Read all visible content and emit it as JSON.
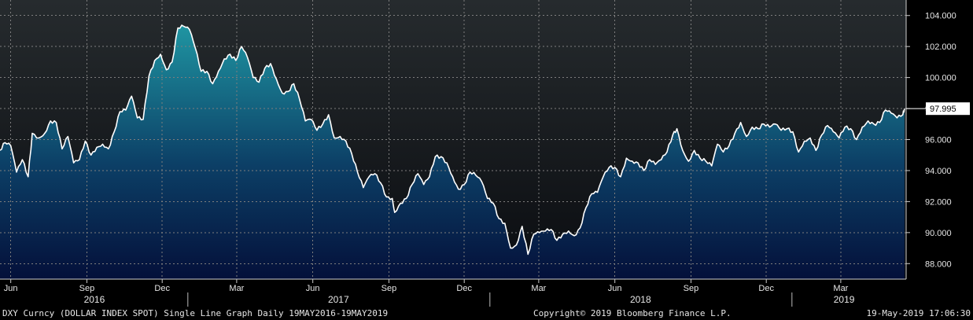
{
  "chart_data": {
    "type": "area",
    "series_name": "DXY Curncy",
    "ylim": [
      87.0,
      105.0
    ],
    "yticks": [
      "104.000",
      "102.000",
      "100.000",
      "98.000",
      "96.000",
      "94.000",
      "92.000",
      "90.000",
      "88.000"
    ],
    "last_value": "97.995",
    "x_month_labels": [
      "Jun",
      "Sep",
      "Dec",
      "Mar",
      "Jun",
      "Sep",
      "Dec",
      "Mar",
      "Jun",
      "Sep",
      "Dec",
      "Mar"
    ],
    "x_year_labels": [
      "2016",
      "2017",
      "2018",
      "2019"
    ],
    "points": [
      [
        "2016-05-19",
        95.3
      ],
      [
        "2016-05-25",
        95.8
      ],
      [
        "2016-06-01",
        95.6
      ],
      [
        "2016-06-08",
        93.9
      ],
      [
        "2016-06-15",
        94.7
      ],
      [
        "2016-06-22",
        93.6
      ],
      [
        "2016-06-27",
        96.4
      ],
      [
        "2016-07-05",
        96.1
      ],
      [
        "2016-07-12",
        96.4
      ],
      [
        "2016-07-19",
        97.2
      ],
      [
        "2016-07-26",
        97.1
      ],
      [
        "2016-08-02",
        95.4
      ],
      [
        "2016-08-09",
        96.2
      ],
      [
        "2016-08-16",
        94.5
      ],
      [
        "2016-08-23",
        94.7
      ],
      [
        "2016-08-30",
        95.9
      ],
      [
        "2016-09-06",
        95.0
      ],
      [
        "2016-09-13",
        95.5
      ],
      [
        "2016-09-20",
        95.7
      ],
      [
        "2016-09-27",
        95.4
      ],
      [
        "2016-10-04",
        96.5
      ],
      [
        "2016-10-11",
        97.8
      ],
      [
        "2016-10-18",
        97.9
      ],
      [
        "2016-10-25",
        98.8
      ],
      [
        "2016-11-01",
        97.4
      ],
      [
        "2016-11-08",
        97.3
      ],
      [
        "2016-11-15",
        100.1
      ],
      [
        "2016-11-22",
        101.1
      ],
      [
        "2016-11-29",
        101.5
      ],
      [
        "2016-12-06",
        100.5
      ],
      [
        "2016-12-13",
        101.0
      ],
      [
        "2016-12-20",
        103.2
      ],
      [
        "2016-12-27",
        103.3
      ],
      [
        "2017-01-03",
        103.1
      ],
      [
        "2017-01-10",
        101.9
      ],
      [
        "2017-01-17",
        100.4
      ],
      [
        "2017-01-24",
        100.4
      ],
      [
        "2017-01-31",
        99.6
      ],
      [
        "2017-02-07",
        100.4
      ],
      [
        "2017-02-14",
        101.2
      ],
      [
        "2017-02-21",
        101.5
      ],
      [
        "2017-02-28",
        101.1
      ],
      [
        "2017-03-07",
        102.0
      ],
      [
        "2017-03-14",
        101.3
      ],
      [
        "2017-03-21",
        100.0
      ],
      [
        "2017-03-28",
        99.7
      ],
      [
        "2017-04-04",
        100.6
      ],
      [
        "2017-04-11",
        100.9
      ],
      [
        "2017-04-18",
        99.9
      ],
      [
        "2017-04-25",
        99.0
      ],
      [
        "2017-05-02",
        99.1
      ],
      [
        "2017-05-09",
        99.6
      ],
      [
        "2017-05-16",
        98.6
      ],
      [
        "2017-05-23",
        97.2
      ],
      [
        "2017-05-30",
        97.3
      ],
      [
        "2017-06-06",
        96.6
      ],
      [
        "2017-06-13",
        97.0
      ],
      [
        "2017-06-20",
        97.6
      ],
      [
        "2017-06-27",
        96.1
      ],
      [
        "2017-07-04",
        96.2
      ],
      [
        "2017-07-11",
        95.9
      ],
      [
        "2017-07-18",
        95.1
      ],
      [
        "2017-07-25",
        93.9
      ],
      [
        "2017-08-01",
        92.9
      ],
      [
        "2017-08-08",
        93.6
      ],
      [
        "2017-08-15",
        93.8
      ],
      [
        "2017-08-22",
        93.2
      ],
      [
        "2017-08-29",
        92.3
      ],
      [
        "2017-09-05",
        92.2
      ],
      [
        "2017-09-08",
        91.3
      ],
      [
        "2017-09-15",
        91.9
      ],
      [
        "2017-09-22",
        92.2
      ],
      [
        "2017-09-29",
        93.1
      ],
      [
        "2017-10-06",
        93.8
      ],
      [
        "2017-10-13",
        93.1
      ],
      [
        "2017-10-20",
        93.6
      ],
      [
        "2017-10-27",
        94.9
      ],
      [
        "2017-11-03",
        94.9
      ],
      [
        "2017-11-10",
        94.5
      ],
      [
        "2017-11-17",
        93.6
      ],
      [
        "2017-11-24",
        92.8
      ],
      [
        "2017-12-01",
        93.1
      ],
      [
        "2017-12-08",
        93.9
      ],
      [
        "2017-12-15",
        93.7
      ],
      [
        "2017-12-22",
        93.3
      ],
      [
        "2017-12-29",
        92.2
      ],
      [
        "2018-01-05",
        91.9
      ],
      [
        "2018-01-12",
        90.9
      ],
      [
        "2018-01-19",
        90.6
      ],
      [
        "2018-01-26",
        89.0
      ],
      [
        "2018-02-02",
        89.2
      ],
      [
        "2018-02-09",
        90.4
      ],
      [
        "2018-02-16",
        88.6
      ],
      [
        "2018-02-23",
        89.9
      ],
      [
        "2018-03-02",
        90.0
      ],
      [
        "2018-03-09",
        90.1
      ],
      [
        "2018-03-16",
        90.2
      ],
      [
        "2018-03-23",
        89.5
      ],
      [
        "2018-03-30",
        89.9
      ],
      [
        "2018-04-06",
        90.1
      ],
      [
        "2018-04-13",
        89.8
      ],
      [
        "2018-04-20",
        90.3
      ],
      [
        "2018-04-27",
        91.6
      ],
      [
        "2018-05-04",
        92.5
      ],
      [
        "2018-05-11",
        92.6
      ],
      [
        "2018-05-18",
        93.6
      ],
      [
        "2018-05-25",
        94.2
      ],
      [
        "2018-06-01",
        94.2
      ],
      [
        "2018-06-08",
        93.6
      ],
      [
        "2018-06-15",
        94.8
      ],
      [
        "2018-06-22",
        94.6
      ],
      [
        "2018-06-29",
        94.5
      ],
      [
        "2018-07-06",
        94.0
      ],
      [
        "2018-07-13",
        94.7
      ],
      [
        "2018-07-20",
        94.4
      ],
      [
        "2018-07-27",
        94.7
      ],
      [
        "2018-08-03",
        95.2
      ],
      [
        "2018-08-10",
        96.3
      ],
      [
        "2018-08-15",
        96.7
      ],
      [
        "2018-08-22",
        95.3
      ],
      [
        "2018-08-29",
        94.6
      ],
      [
        "2018-09-05",
        95.3
      ],
      [
        "2018-09-12",
        94.8
      ],
      [
        "2018-09-19",
        94.6
      ],
      [
        "2018-09-26",
        94.3
      ],
      [
        "2018-10-03",
        95.7
      ],
      [
        "2018-10-10",
        95.2
      ],
      [
        "2018-10-17",
        95.6
      ],
      [
        "2018-10-24",
        96.4
      ],
      [
        "2018-10-31",
        97.1
      ],
      [
        "2018-11-07",
        96.2
      ],
      [
        "2018-11-14",
        96.8
      ],
      [
        "2018-11-21",
        96.7
      ],
      [
        "2018-11-28",
        97.0
      ],
      [
        "2018-12-05",
        96.8
      ],
      [
        "2018-12-12",
        97.0
      ],
      [
        "2018-12-19",
        96.6
      ],
      [
        "2018-12-26",
        96.7
      ],
      [
        "2019-01-02",
        96.5
      ],
      [
        "2019-01-09",
        95.2
      ],
      [
        "2019-01-16",
        95.9
      ],
      [
        "2019-01-23",
        96.1
      ],
      [
        "2019-01-30",
        95.3
      ],
      [
        "2019-02-06",
        96.3
      ],
      [
        "2019-02-13",
        96.9
      ],
      [
        "2019-02-20",
        96.5
      ],
      [
        "2019-02-27",
        96.1
      ],
      [
        "2019-03-06",
        96.8
      ],
      [
        "2019-03-13",
        96.7
      ],
      [
        "2019-03-20",
        96.0
      ],
      [
        "2019-03-27",
        96.8
      ],
      [
        "2019-04-03",
        97.2
      ],
      [
        "2019-04-10",
        97.0
      ],
      [
        "2019-04-17",
        97.1
      ],
      [
        "2019-04-24",
        97.9
      ],
      [
        "2019-05-01",
        97.7
      ],
      [
        "2019-05-08",
        97.4
      ],
      [
        "2019-05-15",
        97.6
      ],
      [
        "2019-05-17",
        97.995
      ]
    ]
  },
  "footer": {
    "left": "DXY Curncy (DOLLAR INDEX SPOT) Single Line Graph  Daily 19MAY2016-19MAY2019",
    "center": "Copyright© 2019 Bloomberg Finance L.P.",
    "right": "19-May-2019 17:06:30"
  },
  "colors": {
    "background": "#000000",
    "plot_top": "#222629",
    "area_top": "#1d8a9a",
    "area_bottom": "#05123a",
    "line": "#ffffff",
    "grid": "#8a8a8a"
  }
}
